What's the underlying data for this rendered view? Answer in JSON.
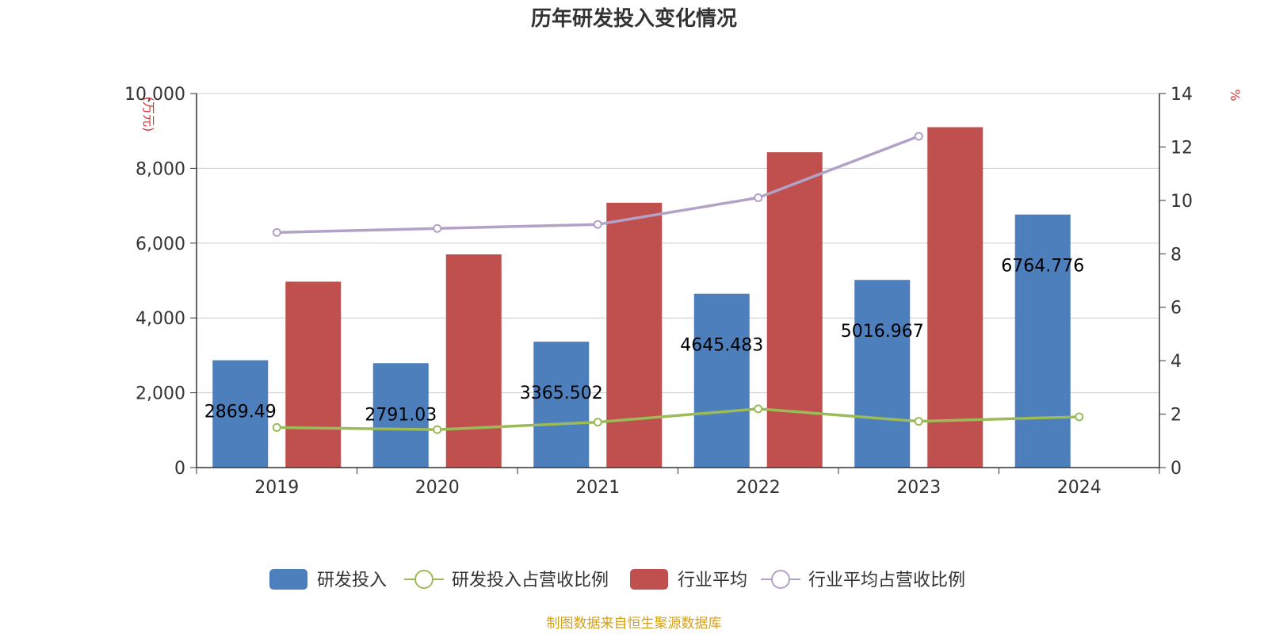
{
  "chart_data": {
    "type": "bar",
    "title": "历年研发投入变化情况",
    "categories": [
      "2019",
      "2020",
      "2021",
      "2022",
      "2023",
      "2024"
    ],
    "y_left": {
      "unit": "万元",
      "range": [
        0,
        10000
      ],
      "ticks": [
        "0",
        "2,000",
        "4,000",
        "6,000",
        "8,000",
        "10,000"
      ]
    },
    "y_right": {
      "unit": "%",
      "range": [
        0,
        14
      ],
      "ticks": [
        "0",
        "2",
        "4",
        "6",
        "8",
        "10",
        "12",
        "14"
      ]
    },
    "grid": true,
    "legend_position": "bottom",
    "series": [
      {
        "name": "研发投入",
        "kind": "bar",
        "axis": "left",
        "color": "#4e7fbd",
        "values": [
          2869.49,
          2791.03,
          3365.502,
          4645.483,
          5016.967,
          6764.776
        ],
        "labels": [
          "2869.49",
          "2791.03",
          "3365.502",
          "4645.483",
          "5016.967",
          "6764.776"
        ]
      },
      {
        "name": "研发投入占营收比例",
        "kind": "line",
        "axis": "right",
        "color": "#9bbb59",
        "values": [
          1.5,
          1.42,
          1.7,
          2.2,
          1.73,
          1.9
        ]
      },
      {
        "name": "行业平均",
        "kind": "bar",
        "axis": "left",
        "color": "#c0504d",
        "values": [
          4970,
          5700,
          7080,
          8430,
          9100,
          null
        ]
      },
      {
        "name": "行业平均占营收比例",
        "kind": "line",
        "axis": "right",
        "color": "#b3a2c7",
        "values": [
          8.8,
          8.95,
          9.1,
          10.1,
          12.4,
          null
        ]
      }
    ]
  },
  "footer": {
    "source": "制图数据来自恒生聚源数据库"
  },
  "colors": {
    "axis": "#333333",
    "grid": "#cccccc",
    "unit": "#e03030",
    "source": "#d4a017"
  }
}
